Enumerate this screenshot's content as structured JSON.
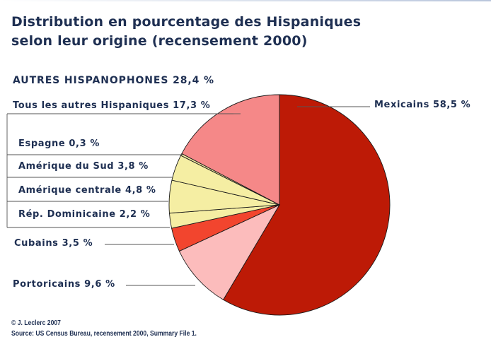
{
  "title_line1": "Distribution en pourcentage des Hispaniques",
  "title_line2": "selon leur origine (recensement 2000)",
  "group_label": "AUTRES HISPANOPHONES 28,4 %",
  "footer": {
    "copyright": "© J. Leclerc 2007",
    "source": "Source: US Census Bureau, recensement 2000, Summary File 1."
  },
  "colors": {
    "mexicains": "#bd1a06",
    "portoricains": "#fcbcbc",
    "cubains": "#f2452e",
    "autres_hispanophones": "#f5eea3",
    "tous_les_autres": "#f58888",
    "title_text": "#1e2f52"
  },
  "chart_data": {
    "type": "pie",
    "title": "Distribution en pourcentage des Hispaniques selon leur origine (recensement 2000)",
    "slices": [
      {
        "label": "Mexicains 58,5 %",
        "value": 58.5,
        "color": "#bd1a06"
      },
      {
        "label": "Portoricains 9,6 %",
        "value": 9.6,
        "color": "#fcbcbc"
      },
      {
        "label": "Cubains 3,5 %",
        "value": 3.5,
        "color": "#f2452e"
      },
      {
        "label": "Rép. Dominicaine 2,2 %",
        "value": 2.2,
        "color": "#f5eea3"
      },
      {
        "label": "Amérique centrale 4,8 %",
        "value": 4.8,
        "color": "#f5eea3"
      },
      {
        "label": "Amérique du Sud 3,8 %",
        "value": 3.8,
        "color": "#f5eea3"
      },
      {
        "label": "Espagne 0,3 %",
        "value": 0.3,
        "color": "#f5eea3"
      },
      {
        "label": "Tous les autres Hispaniques 17,3 %",
        "value": 17.3,
        "color": "#f58888"
      }
    ]
  }
}
